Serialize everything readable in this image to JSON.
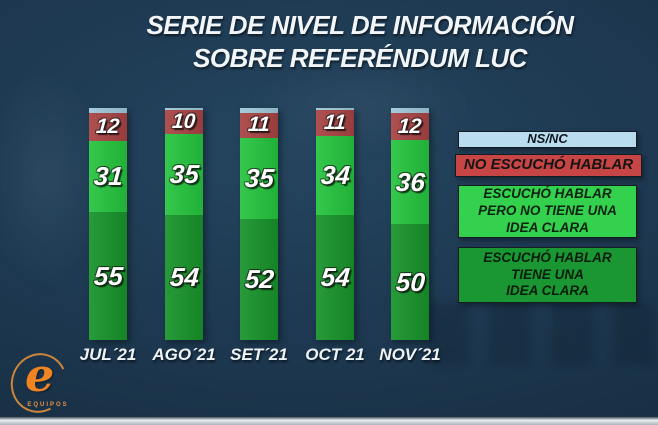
{
  "title": {
    "line1": "SERIE DE NIVEL DE INFORMACIÓN",
    "line2": "SOBRE REFERÉNDUM LUC"
  },
  "chart_data": {
    "type": "bar",
    "stacked": true,
    "unit": "%",
    "ymax": 100,
    "categories": [
      "JUL´21",
      "AGO´21",
      "SET´21",
      "OCT 21",
      "NOV´21"
    ],
    "series": [
      {
        "name": "NS/NC",
        "color": "#9fc8da",
        "values": [
          2,
          1,
          2,
          1,
          2
        ],
        "labels_shown": false
      },
      {
        "name": "NO ESCUCHÓ HABLAR",
        "color": "#a84343",
        "values": [
          12,
          10,
          11,
          11,
          12
        ],
        "labels_shown": true
      },
      {
        "name": "ESCUCHÓ HABLAR PERO NO TIENE UNA IDEA CLARA",
        "color": "#25c43e",
        "values": [
          31,
          35,
          35,
          34,
          36
        ],
        "labels_shown": true
      },
      {
        "name": "ESCUCHÓ HABLAR TIENE UNA IDEA CLARA",
        "color": "#17932a",
        "values": [
          55,
          54,
          52,
          54,
          50
        ],
        "labels_shown": true
      }
    ],
    "legend_position": "right",
    "grid": false
  },
  "legend": {
    "items": [
      {
        "label_lines": [
          "NS/NC"
        ],
        "color": "#b9ddee",
        "text_color": "#10181f"
      },
      {
        "label_lines": [
          "NO ESCUCHÓ HABLAR"
        ],
        "color": "#c74545",
        "text_color": "#141414"
      },
      {
        "label_lines": [
          "ESCUCHÓ HABLAR",
          "PERO NO TIENE UNA",
          "IDEA CLARA"
        ],
        "color": "#33d14d",
        "text_color": "#0b2210"
      },
      {
        "label_lines": [
          "ESCUCHÓ HABLAR",
          "TIENE UNA",
          "IDEA CLARA"
        ],
        "color": "#1a9733",
        "text_color": "#071c0c"
      }
    ]
  },
  "logo": {
    "letter": "e",
    "caption": "EQUIPOS"
  }
}
